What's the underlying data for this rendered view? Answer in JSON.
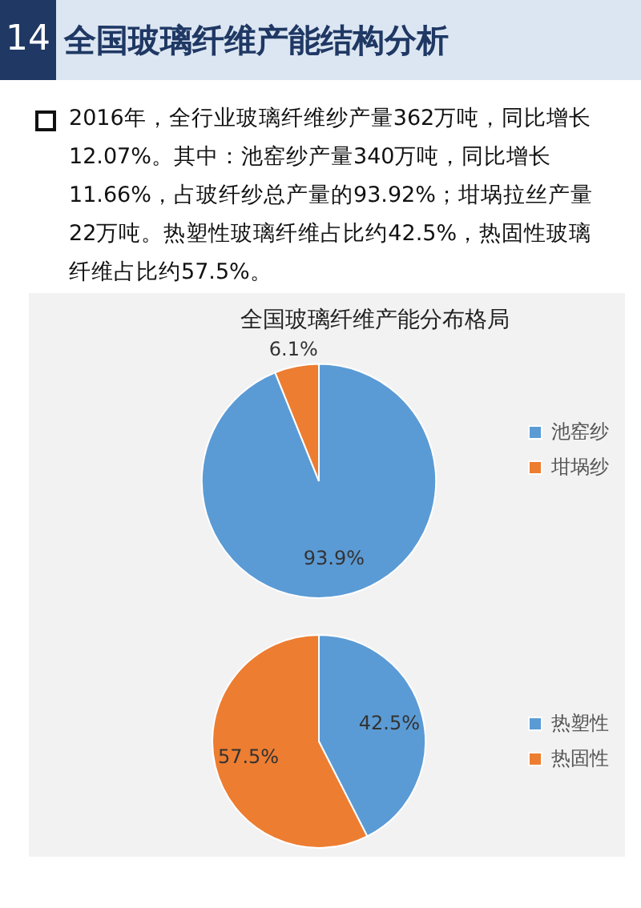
{
  "chart_data": [
    {
      "type": "pie",
      "title": "全国玻璃纤维产能分布格局",
      "annotations": [
        "14",
        "全国玻璃纤维产能结构分析",
        "2016年，全行业玻璃纤维纱产量362万吨，同比增长12.07%。其中：池窑纱产量340万吨，同比增长11.66%，占玻纤纱总产量的93.92%；坩埚拉丝产量22万吨。热塑性玻璃纤维占比约42.5%，热固性玻璃纤维占比约57.5%。"
      ],
      "categories": [
        "池窑纱",
        "坩埚纱"
      ],
      "values": [
        93.9,
        6.1
      ],
      "colors": [
        "#5b9bd5",
        "#ed7d31"
      ],
      "value_labels": [
        "93.9%",
        "6.1%"
      ],
      "legend": "right"
    },
    {
      "type": "pie",
      "categories": [
        "热塑性",
        "热固性"
      ],
      "values": [
        42.5,
        57.5
      ],
      "colors": [
        "#5b9bd5",
        "#ed7d31"
      ],
      "value_labels": [
        "42.5%",
        "57.5%"
      ],
      "legend": "right"
    }
  ]
}
